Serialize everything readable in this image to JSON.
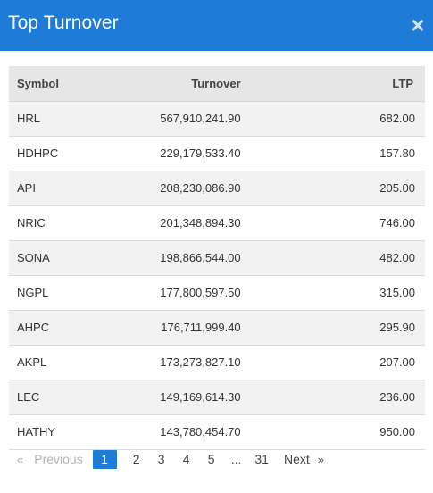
{
  "modal": {
    "title": "Top Turnover",
    "close_glyph": "×"
  },
  "table": {
    "headers": {
      "symbol": "Symbol",
      "turnover": "Turnover",
      "ltp": "LTP"
    },
    "rows": [
      {
        "symbol": "HRL",
        "turnover": "567,910,241.90",
        "ltp": "682.00"
      },
      {
        "symbol": "HDHPC",
        "turnover": "229,179,533.40",
        "ltp": "157.80"
      },
      {
        "symbol": "API",
        "turnover": "208,230,086.90",
        "ltp": "205.00"
      },
      {
        "symbol": "NRIC",
        "turnover": "201,348,894.30",
        "ltp": "746.00"
      },
      {
        "symbol": "SONA",
        "turnover": "198,866,544.00",
        "ltp": "482.00"
      },
      {
        "symbol": "NGPL",
        "turnover": "177,800,597.50",
        "ltp": "315.00"
      },
      {
        "symbol": "AHPC",
        "turnover": "176,711,999.40",
        "ltp": "295.90"
      },
      {
        "symbol": "AKPL",
        "turnover": "173,273,827.10",
        "ltp": "207.00"
      },
      {
        "symbol": "LEC",
        "turnover": "149,169,614.30",
        "ltp": "236.00"
      },
      {
        "symbol": "HATHY",
        "turnover": "143,780,454.70",
        "ltp": "950.00"
      }
    ]
  },
  "pagination": {
    "first_arrow": "«",
    "previous": "Previous",
    "pages": [
      "1",
      "2",
      "3",
      "4",
      "5"
    ],
    "active_page": "1",
    "ellipsis": "...",
    "last_page": "31",
    "next": "Next",
    "last_arrow": "»"
  },
  "colors": {
    "header_bg": "#1e7bd6",
    "active_page_bg": "#1e7bd6"
  }
}
